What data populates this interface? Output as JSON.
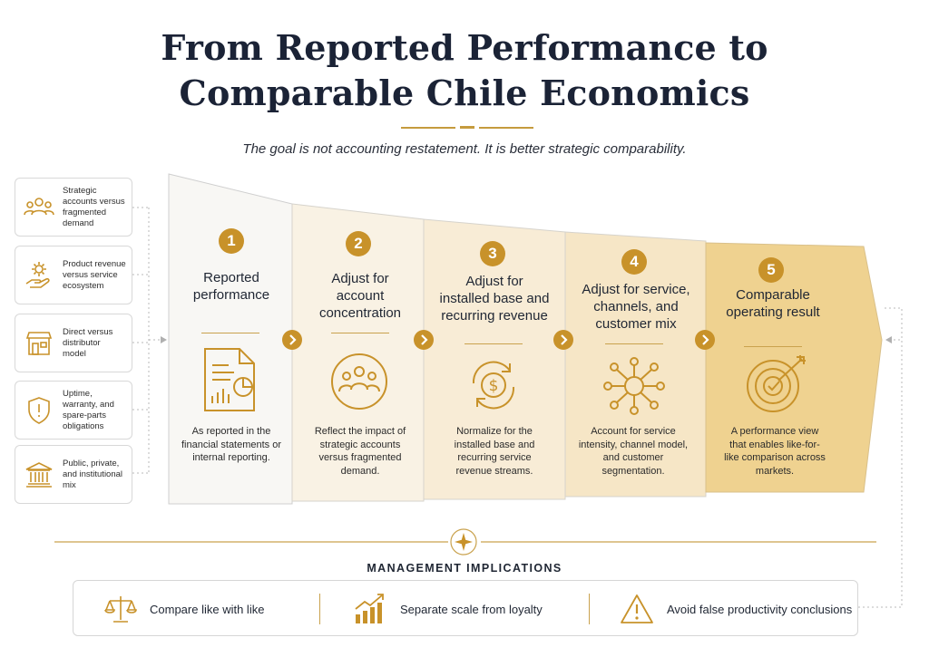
{
  "title_line1": "From Reported Performance to",
  "title_line2": "Comparable Chile Economics",
  "subtitle": "The goal is not accounting restatement. It is better strategic comparability.",
  "colors": {
    "accent": "#c8922a",
    "navy": "#1b2336",
    "panel_light": "#f7f5f0",
    "panel_dark": "#efcf88"
  },
  "drivers": [
    {
      "text": "Strategic accounts versus fragmented demand",
      "icon": "people-group-icon"
    },
    {
      "text": "Product revenue versus service ecosystem",
      "icon": "gear-hand-icon"
    },
    {
      "text": "Direct versus distributor model",
      "icon": "storefront-icon"
    },
    {
      "text": "Uptime, warranty, and spare-parts obligations",
      "icon": "shield-icon"
    },
    {
      "text": "Public, private, and institutional mix",
      "icon": "institution-icon"
    }
  ],
  "stages": [
    {
      "number": "1",
      "title": "Reported performance",
      "icon": "document-chart-icon",
      "description": "As reported in the financial statements or internal reporting."
    },
    {
      "number": "2",
      "title": "Adjust for account concentration",
      "icon": "people-circle-icon",
      "description": "Reflect the impact of strategic accounts versus fragmented demand."
    },
    {
      "number": "3",
      "title": "Adjust for installed base and recurring revenue",
      "icon": "recurring-dollar-icon",
      "description": "Normalize for the installed base and recurring service revenue streams."
    },
    {
      "number": "4",
      "title": "Adjust for service, channels, and customer mix",
      "icon": "network-nodes-icon",
      "description": "Account for service intensity, channel model, and customer segmentation."
    },
    {
      "number": "5",
      "title": "Comparable operating result",
      "icon": "target-arrow-icon",
      "description": "A performance view that enables like-for-like comparison across markets."
    }
  ],
  "management": {
    "label": "MANAGEMENT IMPLICATIONS",
    "items": [
      {
        "text": "Compare like with like",
        "icon": "balance-scale-icon"
      },
      {
        "text": "Separate scale from loyalty",
        "icon": "growth-chart-icon"
      },
      {
        "text": "Avoid false productivity conclusions",
        "icon": "warning-triangle-icon"
      }
    ]
  }
}
